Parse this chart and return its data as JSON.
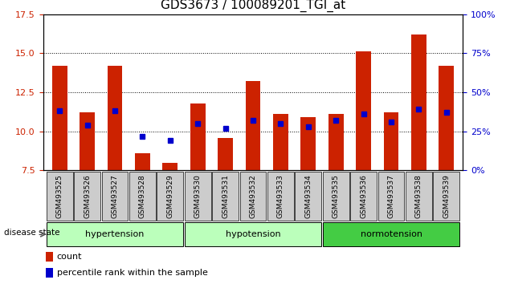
{
  "title": "GDS3673 / 100089201_TGI_at",
  "samples": [
    "GSM493525",
    "GSM493526",
    "GSM493527",
    "GSM493528",
    "GSM493529",
    "GSM493530",
    "GSM493531",
    "GSM493532",
    "GSM493533",
    "GSM493534",
    "GSM493535",
    "GSM493536",
    "GSM493537",
    "GSM493538",
    "GSM493539"
  ],
  "bar_heights": [
    14.2,
    11.2,
    14.2,
    8.6,
    8.0,
    11.8,
    9.6,
    13.2,
    11.1,
    10.9,
    11.1,
    15.1,
    11.2,
    16.2,
    14.2
  ],
  "bar_bottom": 7.5,
  "percentile_values": [
    11.3,
    10.4,
    11.3,
    9.7,
    9.4,
    10.5,
    10.2,
    10.7,
    10.5,
    10.3,
    10.7,
    11.1,
    10.6,
    11.4,
    11.2
  ],
  "ylim_left": [
    7.5,
    17.5
  ],
  "ylim_right": [
    0,
    100
  ],
  "yticks_left": [
    7.5,
    10.0,
    12.5,
    15.0,
    17.5
  ],
  "yticks_right": [
    0,
    25,
    50,
    75,
    100
  ],
  "right_tick_labels": [
    "0%",
    "25%",
    "50%",
    "75%",
    "100%"
  ],
  "bar_color": "#cc2200",
  "percentile_color": "#0000cc",
  "group_spans": [
    {
      "start": 0,
      "end": 4,
      "name": "hypertension",
      "color": "#bbffbb"
    },
    {
      "start": 5,
      "end": 9,
      "name": "hypotension",
      "color": "#bbffbb"
    },
    {
      "start": 10,
      "end": 14,
      "name": "normotension",
      "color": "#44cc44"
    }
  ],
  "disease_label": "disease state",
  "tick_label_color_left": "#cc2200",
  "tick_label_color_right": "#0000cc",
  "sample_box_color": "#cccccc",
  "legend": [
    {
      "label": "count",
      "color": "#cc2200"
    },
    {
      "label": "percentile rank within the sample",
      "color": "#0000cc"
    }
  ]
}
